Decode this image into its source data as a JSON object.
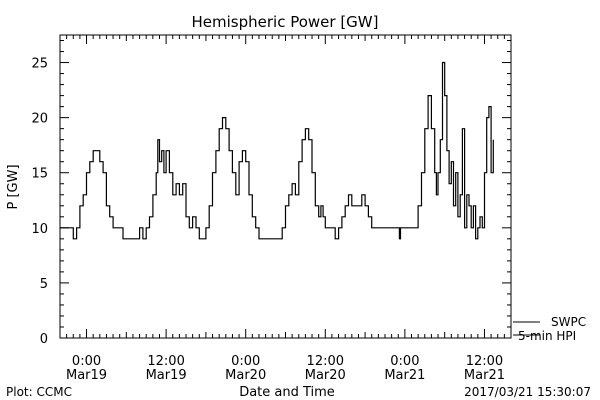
{
  "chart_data": {
    "type": "line",
    "title": "Hemispheric Power [GW]",
    "ylabel": "P [GW]",
    "xlabel": "Date and Time",
    "ylim": [
      0,
      27.5
    ],
    "yticks": [
      0,
      5,
      10,
      15,
      20,
      25
    ],
    "xlim": [
      "2017-03-18T20:00",
      "2017-03-21T16:00"
    ],
    "xticks": [
      {
        "at": "2017-03-19T00:00",
        "time": "0:00",
        "date": "Mar19"
      },
      {
        "at": "2017-03-19T12:00",
        "time": "12:00",
        "date": "Mar19"
      },
      {
        "at": "2017-03-20T00:00",
        "time": "0:00",
        "date": "Mar20"
      },
      {
        "at": "2017-03-20T12:00",
        "time": "12:00",
        "date": "Mar20"
      },
      {
        "at": "2017-03-21T00:00",
        "time": "0:00",
        "date": "Mar21"
      },
      {
        "at": "2017-03-21T12:00",
        "time": "12:00",
        "date": "Mar21"
      }
    ],
    "grid": false,
    "legend": "bottom-right",
    "series": [
      {
        "name": "5-min HPI",
        "color": "#000000",
        "points": [
          [
            "2017-03-18T20:00",
            10
          ],
          [
            "2017-03-18T21:30",
            10
          ],
          [
            "2017-03-18T22:00",
            9
          ],
          [
            "2017-03-18T22:30",
            10
          ],
          [
            "2017-03-18T23:00",
            12
          ],
          [
            "2017-03-18T23:30",
            13
          ],
          [
            "2017-03-19T00:00",
            15
          ],
          [
            "2017-03-19T00:30",
            16
          ],
          [
            "2017-03-19T01:00",
            17
          ],
          [
            "2017-03-19T02:00",
            16
          ],
          [
            "2017-03-19T02:30",
            15
          ],
          [
            "2017-03-19T03:00",
            12
          ],
          [
            "2017-03-19T03:30",
            11
          ],
          [
            "2017-03-19T04:00",
            10
          ],
          [
            "2017-03-19T05:00",
            10
          ],
          [
            "2017-03-19T05:30",
            9
          ],
          [
            "2017-03-19T07:30",
            9
          ],
          [
            "2017-03-19T08:00",
            10
          ],
          [
            "2017-03-19T08:30",
            9
          ],
          [
            "2017-03-19T09:00",
            10
          ],
          [
            "2017-03-19T09:30",
            11
          ],
          [
            "2017-03-19T10:00",
            13
          ],
          [
            "2017-03-19T10:30",
            15
          ],
          [
            "2017-03-19T10:45",
            18
          ],
          [
            "2017-03-19T11:00",
            16
          ],
          [
            "2017-03-19T11:20",
            17
          ],
          [
            "2017-03-19T11:40",
            15
          ],
          [
            "2017-03-19T12:00",
            17
          ],
          [
            "2017-03-19T12:30",
            15
          ],
          [
            "2017-03-19T13:00",
            13
          ],
          [
            "2017-03-19T13:30",
            14
          ],
          [
            "2017-03-19T14:00",
            13
          ],
          [
            "2017-03-19T14:30",
            14
          ],
          [
            "2017-03-19T15:00",
            11
          ],
          [
            "2017-03-19T15:30",
            10
          ],
          [
            "2017-03-19T16:00",
            11
          ],
          [
            "2017-03-19T16:30",
            10
          ],
          [
            "2017-03-19T17:00",
            9
          ],
          [
            "2017-03-19T18:00",
            10
          ],
          [
            "2017-03-19T18:30",
            12
          ],
          [
            "2017-03-19T19:00",
            15
          ],
          [
            "2017-03-19T19:30",
            17
          ],
          [
            "2017-03-19T20:00",
            19
          ],
          [
            "2017-03-19T20:30",
            20
          ],
          [
            "2017-03-19T21:00",
            19
          ],
          [
            "2017-03-19T21:30",
            17
          ],
          [
            "2017-03-19T22:00",
            15
          ],
          [
            "2017-03-19T22:30",
            13
          ],
          [
            "2017-03-19T23:00",
            16
          ],
          [
            "2017-03-19T23:30",
            17
          ],
          [
            "2017-03-20T00:00",
            16
          ],
          [
            "2017-03-20T00:30",
            13
          ],
          [
            "2017-03-20T01:00",
            11
          ],
          [
            "2017-03-20T01:30",
            10
          ],
          [
            "2017-03-20T02:00",
            9
          ],
          [
            "2017-03-20T05:00",
            9
          ],
          [
            "2017-03-20T05:30",
            10
          ],
          [
            "2017-03-20T06:00",
            12
          ],
          [
            "2017-03-20T06:30",
            13
          ],
          [
            "2017-03-20T07:00",
            14
          ],
          [
            "2017-03-20T07:30",
            13
          ],
          [
            "2017-03-20T08:00",
            16
          ],
          [
            "2017-03-20T08:30",
            18
          ],
          [
            "2017-03-20T09:00",
            19
          ],
          [
            "2017-03-20T09:30",
            18
          ],
          [
            "2017-03-20T10:00",
            15
          ],
          [
            "2017-03-20T10:30",
            12
          ],
          [
            "2017-03-20T11:00",
            11
          ],
          [
            "2017-03-20T11:20",
            12
          ],
          [
            "2017-03-20T11:40",
            11
          ],
          [
            "2017-03-20T12:00",
            10
          ],
          [
            "2017-03-20T13:00",
            10
          ],
          [
            "2017-03-20T13:30",
            9
          ],
          [
            "2017-03-20T14:00",
            10
          ],
          [
            "2017-03-20T14:30",
            11
          ],
          [
            "2017-03-20T15:00",
            12
          ],
          [
            "2017-03-20T15:30",
            13
          ],
          [
            "2017-03-20T16:00",
            12
          ],
          [
            "2017-03-20T17:00",
            12
          ],
          [
            "2017-03-20T17:30",
            13
          ],
          [
            "2017-03-20T18:00",
            12
          ],
          [
            "2017-03-20T18:30",
            11
          ],
          [
            "2017-03-20T19:00",
            10
          ],
          [
            "2017-03-20T23:00",
            10
          ],
          [
            "2017-03-20T23:10",
            9
          ],
          [
            "2017-03-20T23:20",
            10
          ],
          [
            "2017-03-21T01:30",
            10
          ],
          [
            "2017-03-21T02:00",
            12
          ],
          [
            "2017-03-21T02:30",
            15
          ],
          [
            "2017-03-21T03:00",
            19
          ],
          [
            "2017-03-21T03:30",
            22
          ],
          [
            "2017-03-21T04:00",
            19
          ],
          [
            "2017-03-21T04:30",
            15
          ],
          [
            "2017-03-21T04:45",
            13
          ],
          [
            "2017-03-21T05:00",
            15
          ],
          [
            "2017-03-21T05:20",
            18
          ],
          [
            "2017-03-21T05:40",
            25
          ],
          [
            "2017-03-21T06:00",
            22
          ],
          [
            "2017-03-21T06:20",
            17
          ],
          [
            "2017-03-21T06:40",
            14
          ],
          [
            "2017-03-21T07:00",
            16
          ],
          [
            "2017-03-21T07:20",
            12
          ],
          [
            "2017-03-21T07:40",
            15
          ],
          [
            "2017-03-21T08:00",
            11
          ],
          [
            "2017-03-21T08:20",
            13
          ],
          [
            "2017-03-21T08:40",
            19
          ],
          [
            "2017-03-21T09:00",
            10
          ],
          [
            "2017-03-21T09:20",
            13
          ],
          [
            "2017-03-21T09:40",
            12
          ],
          [
            "2017-03-21T10:00",
            10
          ],
          [
            "2017-03-21T10:20",
            12
          ],
          [
            "2017-03-21T10:40",
            9
          ],
          [
            "2017-03-21T11:00",
            10
          ],
          [
            "2017-03-21T11:20",
            11
          ],
          [
            "2017-03-21T11:40",
            10
          ],
          [
            "2017-03-21T12:00",
            15
          ],
          [
            "2017-03-21T12:20",
            20
          ],
          [
            "2017-03-21T12:40",
            21
          ],
          [
            "2017-03-21T13:00",
            15
          ],
          [
            "2017-03-21T13:20",
            18
          ]
        ]
      },
      {
        "name": "SWPC",
        "color": "#000000",
        "points": []
      }
    ]
  },
  "footer": {
    "left": "Plot: CCMC",
    "right": "2017/03/21 15:30:07"
  }
}
